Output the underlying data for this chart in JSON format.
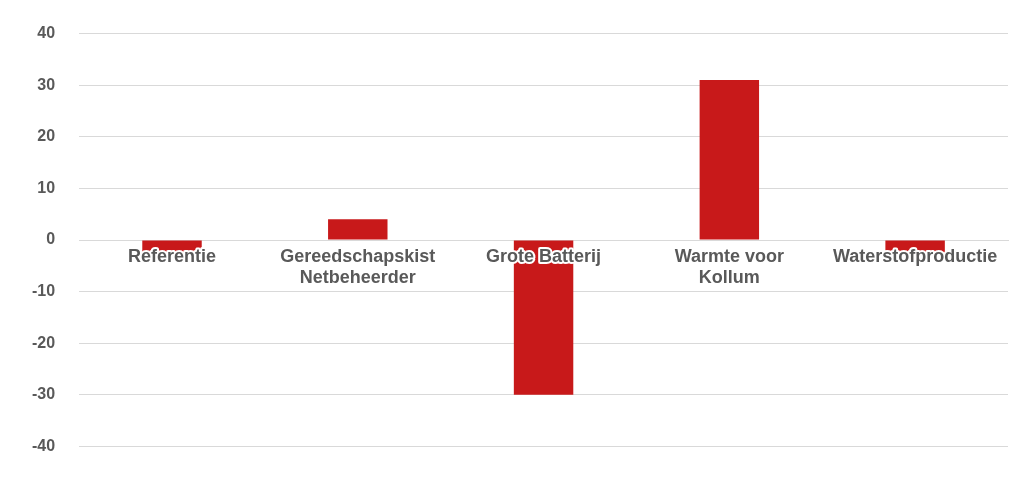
{
  "chart_data": {
    "type": "bar",
    "categories": [
      "Referentie",
      "Gereedschapskist Netbeheerder",
      "Grote Batterij",
      "Warmte voor Kollum",
      "Waterstofproductie"
    ],
    "values": [
      -2.5,
      4,
      -30,
      31,
      -2.7
    ],
    "color": "#c8191a",
    "ylim": [
      -40,
      40
    ],
    "yticks": [
      -40,
      -30,
      -20,
      -10,
      0,
      10,
      20,
      30,
      40
    ],
    "grid": "y"
  }
}
